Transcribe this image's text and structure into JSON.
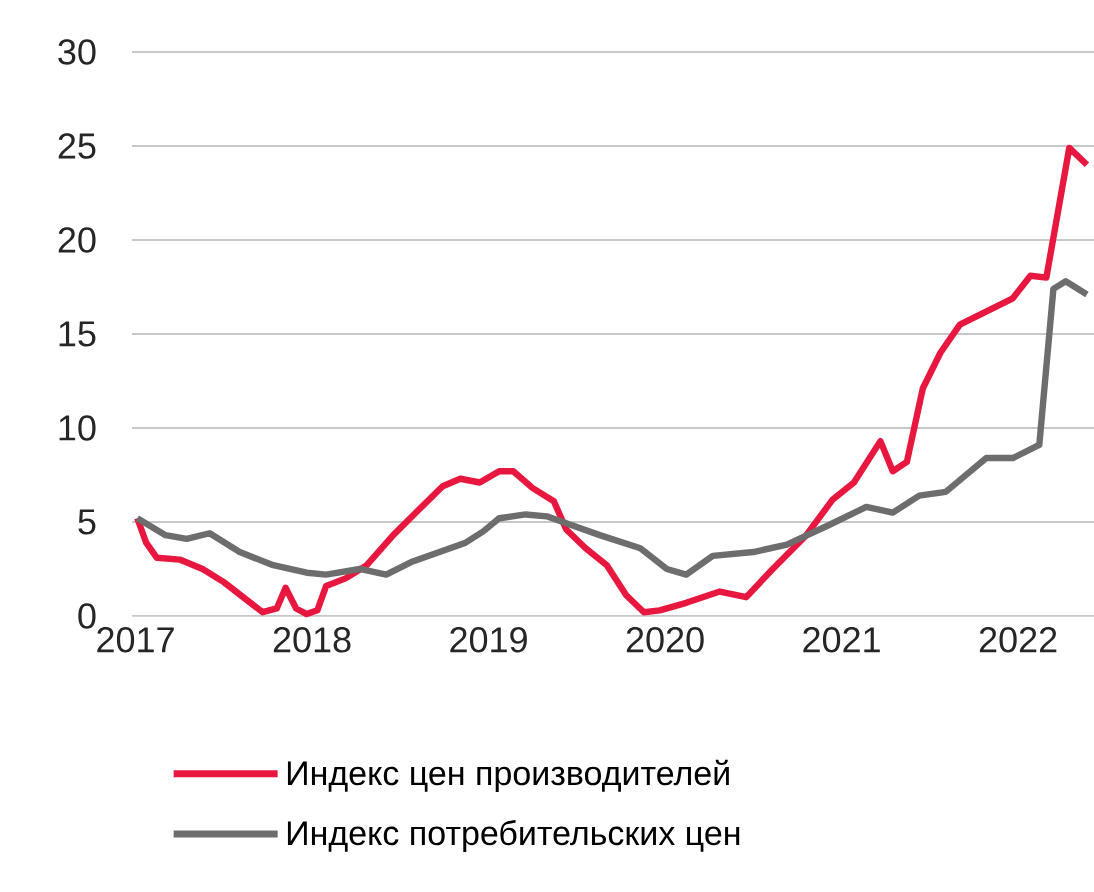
{
  "chart_data": {
    "type": "line",
    "xlim": [
      2016.98,
      2022.43
    ],
    "ylim": [
      0,
      30
    ],
    "xticks": [
      2017,
      2018,
      2019,
      2020,
      2021,
      2022
    ],
    "yticks": [
      0,
      5,
      10,
      15,
      20,
      25,
      30
    ],
    "grid": "y",
    "legend": "bottom",
    "line_style": "solid",
    "marker": "none",
    "series": [
      {
        "name": "Индекс цен производителей",
        "color": "#e8173f",
        "x": [
          2017.01,
          2017.06,
          2017.12,
          2017.25,
          2017.38,
          2017.5,
          2017.61,
          2017.72,
          2017.8,
          2017.85,
          2017.91,
          2017.97,
          2018.03,
          2018.08,
          2018.19,
          2018.31,
          2018.46,
          2018.61,
          2018.74,
          2018.84,
          2018.95,
          2019.06,
          2019.14,
          2019.25,
          2019.37,
          2019.44,
          2019.55,
          2019.67,
          2019.78,
          2019.88,
          2019.97,
          2020.12,
          2020.31,
          2020.46,
          2020.61,
          2020.8,
          2020.95,
          2021.07,
          2021.22,
          2021.29,
          2021.37,
          2021.46,
          2021.56,
          2021.67,
          2021.97,
          2022.07,
          2022.16,
          2022.29,
          2022.39
        ],
        "values": [
          5.2,
          3.9,
          3.1,
          3.0,
          2.5,
          1.8,
          1.0,
          0.2,
          0.4,
          1.5,
          0.4,
          0.1,
          0.3,
          1.6,
          2.0,
          2.7,
          4.3,
          5.7,
          6.9,
          7.3,
          7.1,
          7.7,
          7.7,
          6.8,
          6.1,
          4.6,
          3.6,
          2.7,
          1.1,
          0.2,
          0.3,
          0.7,
          1.3,
          1.0,
          2.5,
          4.3,
          6.2,
          7.1,
          9.3,
          7.7,
          8.2,
          12.1,
          14.0,
          15.5,
          16.9,
          18.1,
          18.0,
          24.9,
          24.0
        ]
      },
      {
        "name": "Индекс потребительских цен",
        "color": "#6d6d6d",
        "x": [
          2017.01,
          2017.17,
          2017.29,
          2017.42,
          2017.59,
          2017.78,
          2017.97,
          2018.08,
          2018.27,
          2018.42,
          2018.57,
          2018.72,
          2018.87,
          2018.97,
          2019.06,
          2019.21,
          2019.33,
          2019.48,
          2019.63,
          2019.86,
          2020.01,
          2020.12,
          2020.27,
          2020.5,
          2020.69,
          2020.92,
          2021.14,
          2021.29,
          2021.44,
          2021.59,
          2021.82,
          2021.97,
          2022.12,
          2022.2,
          2022.27,
          2022.39
        ],
        "values": [
          5.2,
          4.3,
          4.1,
          4.4,
          3.4,
          2.7,
          2.3,
          2.2,
          2.5,
          2.2,
          2.9,
          3.4,
          3.9,
          4.5,
          5.2,
          5.4,
          5.3,
          4.8,
          4.3,
          3.6,
          2.5,
          2.2,
          3.2,
          3.4,
          3.8,
          4.8,
          5.8,
          5.5,
          6.4,
          6.6,
          8.4,
          8.4,
          9.1,
          17.4,
          17.8,
          17.1
        ]
      }
    ]
  }
}
